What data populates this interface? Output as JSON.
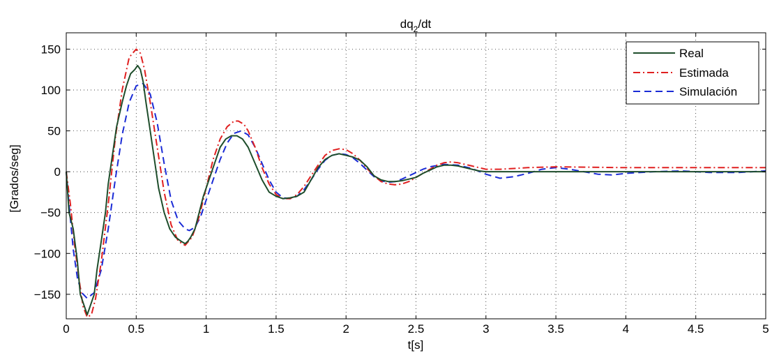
{
  "chart_data": {
    "type": "line",
    "title": "dq_2/dt",
    "title_main": "dq",
    "title_sub": "2",
    "title_rest": "/dt",
    "xlabel": "t[s]",
    "ylabel": "[Grados/seg]",
    "xlim": [
      0,
      5
    ],
    "ylim": [
      -180,
      170
    ],
    "xticks": [
      0,
      0.5,
      1,
      1.5,
      2,
      2.5,
      3,
      3.5,
      4,
      4.5,
      5
    ],
    "xtick_labels": [
      "0",
      "0.5",
      "1",
      "1.5",
      "2",
      "2.5",
      "3",
      "3.5",
      "4",
      "4.5",
      "5"
    ],
    "yticks": [
      -150,
      -100,
      -50,
      0,
      50,
      100,
      150
    ],
    "ytick_labels": [
      "−150",
      "−100",
      "−50",
      "0",
      "50",
      "100",
      "150"
    ],
    "grid": true,
    "legend_position": "top-right",
    "series": [
      {
        "name": "Real",
        "color": "#1e4d2b",
        "style": "solid",
        "x": [
          0,
          0.02,
          0.05,
          0.08,
          0.1,
          0.12,
          0.14,
          0.15,
          0.17,
          0.2,
          0.22,
          0.25,
          0.28,
          0.3,
          0.33,
          0.36,
          0.4,
          0.43,
          0.46,
          0.49,
          0.51,
          0.53,
          0.55,
          0.57,
          0.6,
          0.63,
          0.66,
          0.7,
          0.74,
          0.78,
          0.82,
          0.85,
          0.87,
          0.89,
          0.92,
          0.95,
          0.98,
          1.02,
          1.06,
          1.1,
          1.14,
          1.18,
          1.22,
          1.26,
          1.3,
          1.35,
          1.4,
          1.45,
          1.5,
          1.55,
          1.6,
          1.65,
          1.7,
          1.75,
          1.8,
          1.85,
          1.9,
          1.95,
          2.0,
          2.05,
          2.1,
          2.15,
          2.2,
          2.25,
          2.3,
          2.35,
          2.4,
          2.45,
          2.5,
          2.55,
          2.6,
          2.65,
          2.7,
          2.75,
          2.8,
          2.85,
          2.9,
          2.95,
          3.0,
          3.05,
          3.1,
          3.15,
          3.2,
          3.25,
          3.3,
          3.5,
          4.0,
          4.5,
          5.0
        ],
        "y": [
          0,
          -50,
          -70,
          -110,
          -150,
          -160,
          -170,
          -175,
          -165,
          -150,
          -120,
          -85,
          -50,
          -15,
          20,
          55,
          85,
          105,
          120,
          125,
          130,
          125,
          110,
          85,
          50,
          15,
          -20,
          -50,
          -70,
          -80,
          -85,
          -88,
          -85,
          -80,
          -70,
          -50,
          -30,
          -10,
          10,
          30,
          40,
          44,
          44,
          40,
          30,
          10,
          -10,
          -25,
          -30,
          -33,
          -32,
          -30,
          -25,
          -10,
          5,
          15,
          20,
          22,
          20,
          18,
          14,
          6,
          -5,
          -10,
          -12,
          -12,
          -11,
          -9,
          -7,
          -2,
          2,
          6,
          8,
          8,
          7,
          5,
          3,
          1,
          0,
          0,
          0,
          0,
          0,
          0,
          0,
          0,
          0,
          0,
          0
        ]
      },
      {
        "name": "Estimada",
        "color": "#e02020",
        "style": "dashdot",
        "x": [
          0,
          0.03,
          0.06,
          0.09,
          0.12,
          0.15,
          0.18,
          0.21,
          0.25,
          0.3,
          0.35,
          0.4,
          0.45,
          0.5,
          0.53,
          0.56,
          0.6,
          0.65,
          0.7,
          0.75,
          0.8,
          0.85,
          0.9,
          0.95,
          1.0,
          1.05,
          1.1,
          1.15,
          1.2,
          1.23,
          1.27,
          1.3,
          1.35,
          1.4,
          1.45,
          1.5,
          1.55,
          1.6,
          1.65,
          1.7,
          1.75,
          1.8,
          1.85,
          1.9,
          1.95,
          2.0,
          2.05,
          2.1,
          2.15,
          2.2,
          2.25,
          2.3,
          2.35,
          2.4,
          2.45,
          2.5,
          2.55,
          2.6,
          2.65,
          2.7,
          2.75,
          2.8,
          2.85,
          2.9,
          2.95,
          3.0,
          3.1,
          3.2,
          3.3,
          3.5,
          4.0,
          4.5,
          5.0
        ],
        "y": [
          0,
          -40,
          -90,
          -130,
          -165,
          -178,
          -175,
          -155,
          -110,
          -40,
          40,
          100,
          140,
          150,
          145,
          125,
          85,
          30,
          -25,
          -65,
          -85,
          -90,
          -80,
          -55,
          -20,
          15,
          40,
          55,
          62,
          62,
          58,
          50,
          30,
          5,
          -15,
          -28,
          -33,
          -33,
          -28,
          -18,
          -5,
          8,
          20,
          26,
          28,
          27,
          22,
          14,
          4,
          -5,
          -12,
          -15,
          -16,
          -15,
          -12,
          -7,
          -2,
          3,
          8,
          11,
          12,
          11,
          9,
          7,
          5,
          3,
          3,
          4,
          5,
          6,
          5,
          5,
          5
        ]
      },
      {
        "name": "Simulación",
        "color": "#1a2bd6",
        "style": "dashed",
        "x": [
          0,
          0.02,
          0.05,
          0.08,
          0.11,
          0.15,
          0.2,
          0.25,
          0.3,
          0.35,
          0.4,
          0.45,
          0.5,
          0.55,
          0.6,
          0.65,
          0.7,
          0.75,
          0.8,
          0.85,
          0.88,
          0.92,
          0.96,
          1.0,
          1.05,
          1.1,
          1.15,
          1.2,
          1.25,
          1.3,
          1.35,
          1.4,
          1.45,
          1.5,
          1.55,
          1.6,
          1.65,
          1.7,
          1.75,
          1.8,
          1.85,
          1.9,
          1.95,
          2.0,
          2.05,
          2.1,
          2.15,
          2.2,
          2.25,
          2.3,
          2.35,
          2.4,
          2.45,
          2.5,
          2.55,
          2.6,
          2.7,
          2.8,
          2.9,
          3.0,
          3.1,
          3.2,
          3.3,
          3.4,
          3.5,
          3.6,
          3.7,
          3.8,
          3.9,
          4.0,
          4.2,
          4.4,
          4.6,
          4.8,
          5.0
        ],
        "y": [
          0,
          -40,
          -95,
          -130,
          -148,
          -155,
          -148,
          -120,
          -70,
          -10,
          45,
          85,
          105,
          108,
          95,
          60,
          10,
          -35,
          -60,
          -70,
          -72,
          -68,
          -55,
          -35,
          -10,
          15,
          35,
          47,
          50,
          45,
          30,
          10,
          -10,
          -25,
          -32,
          -33,
          -30,
          -22,
          -10,
          3,
          14,
          20,
          22,
          21,
          17,
          10,
          2,
          -6,
          -11,
          -13,
          -12,
          -9,
          -5,
          -1,
          3,
          6,
          9,
          8,
          4,
          -3,
          -8,
          -6,
          -2,
          3,
          5,
          3,
          0,
          -3,
          -4,
          -2,
          0,
          1,
          -1,
          -1,
          1
        ]
      }
    ]
  }
}
